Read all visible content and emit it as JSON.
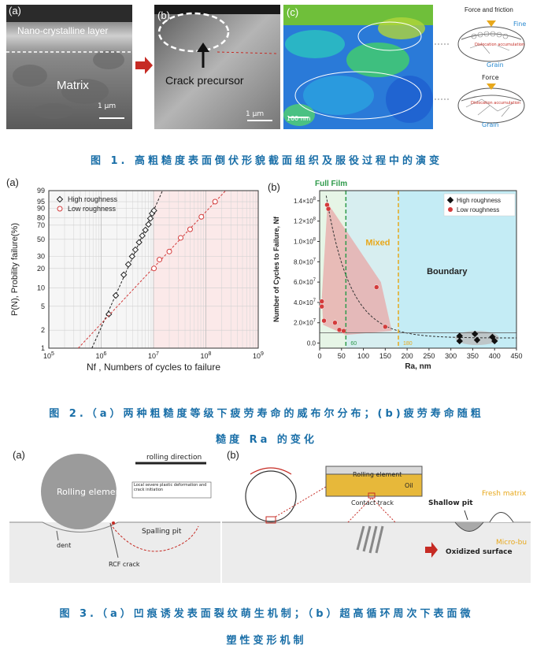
{
  "figure1": {
    "panel_a": {
      "label": "(a)",
      "layer_text": "Nano-crystalline layer",
      "matrix_text": "Matrix",
      "scale": "1 μm"
    },
    "panel_b": {
      "label": "(b)",
      "precursor_text": "Crack precursor",
      "scale": "1 μm"
    },
    "panel_c": {
      "label": "(c)",
      "scale": "100 nm"
    },
    "side": {
      "top_title": "Force and friction",
      "top_fine": "Fine",
      "top_grain": "Grain",
      "bottom_title": "Force",
      "bottom_grain": "Grain",
      "red_note": "Dislocation accumulation"
    },
    "caption": "图 1. 高粗糙度表面倒伏形貌截面组织及服役过程中的演变"
  },
  "figure2": {
    "caption_line1": "图 2.（a）两种粗糙度等级下疲劳寿命的威布尔分布；(b)疲劳寿命随粗",
    "caption_line2": "糙度 Ra 的变化",
    "chart_data": [
      {
        "type": "scatter",
        "panel": "(a)",
        "xlabel": "Nf , Numbers of cycles to failure",
        "ylabel": "P(N), Probility failure(%)",
        "x_ticks": [
          "10^5",
          "10^6",
          "10^7",
          "10^8",
          "10^9"
        ],
        "y_ticks": [
          "1",
          "2",
          "5",
          "10",
          "20",
          "30",
          "50",
          "70",
          "80",
          "90",
          "95",
          "99"
        ],
        "xlim": [
          100000,
          1000000000
        ],
        "ylim": [
          1,
          99
        ],
        "x_scale": "log",
        "y_scale": "weibull",
        "legend": "top-left",
        "series": [
          {
            "name": "High roughness",
            "marker": "diamond",
            "color": "#222222",
            "points": [
              [
                1400000,
                3.7
              ],
              [
                1900000,
                7.5
              ],
              [
                2700000,
                16
              ],
              [
                3300000,
                23
              ],
              [
                3900000,
                30
              ],
              [
                4500000,
                37
              ],
              [
                5300000,
                46
              ],
              [
                6100000,
                55
              ],
              [
                7000000,
                63
              ],
              [
                8000000,
                71
              ],
              [
                8700000,
                79
              ],
              [
                9400000,
                85
              ],
              [
                10200000,
                88
              ]
            ]
          },
          {
            "name": "Low roughness",
            "marker": "circle",
            "color": "#d33b3b",
            "points": [
              [
                10200000,
                20
              ],
              [
                13000000,
                27
              ],
              [
                20000000,
                35
              ],
              [
                33000000,
                52
              ],
              [
                50000000,
                64
              ],
              [
                82000000,
                81
              ],
              [
                150000000,
                95
              ]
            ]
          }
        ]
      },
      {
        "type": "scatter",
        "panel": "(b)",
        "xlabel": "Ra, nm",
        "ylabel": "Number of Cycles to Failure, Nf",
        "x_ticks": [
          "0",
          "50",
          "100",
          "150",
          "200",
          "250",
          "300",
          "350",
          "400",
          "450"
        ],
        "y_ticks": [
          "0.0",
          "2.0×10^7",
          "4.0×10^7",
          "6.0×10^7",
          "8.0×10^7",
          "1.0×10^8",
          "1.2×10^8",
          "1.4×10^8"
        ],
        "xlim": [
          0,
          450
        ],
        "ylim": [
          -5000000,
          150000000
        ],
        "legend": "top-right",
        "regions": [
          "Full Film",
          "Mixed",
          "Boundary"
        ],
        "vlines": [
          {
            "x": 60,
            "label": "60"
          },
          {
            "x": 180,
            "label": "180"
          }
        ],
        "series": [
          {
            "name": "High roughness",
            "marker": "diamond",
            "color": "#111111",
            "points": [
              [
                320,
                7000000
              ],
              [
                320,
                2000000
              ],
              [
                355,
                9000000
              ],
              [
                360,
                3000000
              ],
              [
                395,
                6000000
              ],
              [
                400,
                2000000
              ]
            ]
          },
          {
            "name": "Low roughness",
            "marker": "circle",
            "color": "#d33b3b",
            "points": [
              [
                17,
                136000000
              ],
              [
                20,
                132000000
              ],
              [
                5,
                41000000
              ],
              [
                5,
                36000000
              ],
              [
                10,
                22000000
              ],
              [
                35,
                20000000
              ],
              [
                45,
                13000000
              ],
              [
                55,
                12000000
              ],
              [
                130,
                55000000
              ],
              [
                150,
                16000000
              ]
            ]
          }
        ]
      }
    ]
  },
  "figure3": {
    "panel_a": {
      "label": "(a)",
      "direction": "rolling direction",
      "element": "Rolling element",
      "note": "Local severe plastic deformation and crack initiation",
      "spalling": "Spalling pit",
      "dent": "dent",
      "crack": "RCF crack"
    },
    "panel_b": {
      "label": "(b)",
      "rolling": "Rolling element",
      "oil": "Oil",
      "contact": "Contact track",
      "shallow": "Shallow pit",
      "fresh": "Fresh matrix",
      "micro": "Micro-bu",
      "oxidized": "Oxidized surface"
    },
    "caption_line1": "图 3.（a）凹痕诱发表面裂纹萌生机制；（b）超高循环周次下表面微",
    "caption_line2": "塑性变形机制"
  }
}
